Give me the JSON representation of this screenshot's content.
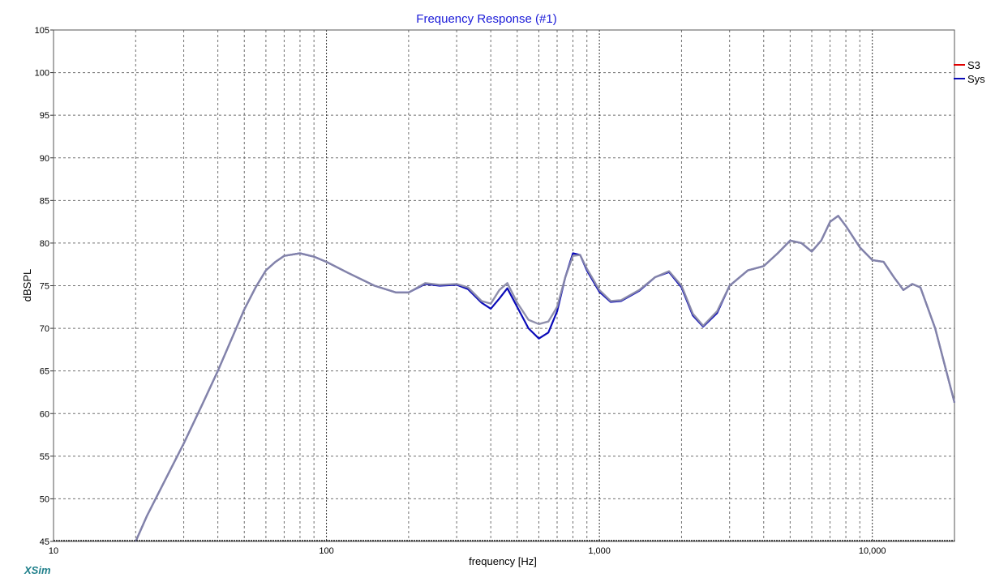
{
  "app": {
    "brand": "XSim"
  },
  "colors": {
    "title": "#1a1ad8",
    "grid": "#707070",
    "s3": "#e00000",
    "sys": "#0a0ab8",
    "trace_overlay": "#8a8aa8",
    "brand": "#1f7f8a"
  },
  "chart_data": {
    "type": "line",
    "title": "Frequency Response (#1)",
    "xlabel": "frequency [Hz]",
    "ylabel": "dBSPL",
    "xscale": "log",
    "xlim": [
      10,
      20000
    ],
    "ylim": [
      45,
      105
    ],
    "grid": true,
    "legend_position": "right",
    "x_ticks": [
      {
        "value": 10,
        "label": "10"
      },
      {
        "value": 100,
        "label": "100"
      },
      {
        "value": 1000,
        "label": "1,000"
      },
      {
        "value": 10000,
        "label": "10,000"
      }
    ],
    "y_ticks": [
      {
        "value": 45,
        "label": "45"
      },
      {
        "value": 50,
        "label": "50"
      },
      {
        "value": 55,
        "label": "55"
      },
      {
        "value": 60,
        "label": "60"
      },
      {
        "value": 65,
        "label": "65"
      },
      {
        "value": 70,
        "label": "70"
      },
      {
        "value": 75,
        "label": "75"
      },
      {
        "value": 80,
        "label": "80"
      },
      {
        "value": 85,
        "label": "85"
      },
      {
        "value": 90,
        "label": "90"
      },
      {
        "value": 95,
        "label": "95"
      },
      {
        "value": 100,
        "label": "100"
      },
      {
        "value": 105,
        "label": "105"
      }
    ],
    "series": [
      {
        "name": "S3",
        "color": "#e00000",
        "x": [
          20,
          22,
          25,
          30,
          35,
          40,
          45,
          50,
          55,
          60,
          65,
          70,
          80,
          90,
          100,
          120,
          150,
          180,
          200,
          230,
          260,
          300,
          330,
          370,
          400,
          430,
          460,
          500,
          550,
          600,
          650,
          700,
          750,
          800,
          850,
          900,
          1000,
          1100,
          1200,
          1400,
          1600,
          1800,
          2000,
          2200,
          2400,
          2700,
          3000,
          3500,
          4000,
          4500,
          5000,
          5500,
          6000,
          6500,
          7000,
          7500,
          8000,
          9000,
          10000,
          11000,
          12000,
          13000,
          14000,
          15000,
          17000,
          20000
        ],
        "y": [
          45,
          48,
          51.5,
          56.5,
          61,
          65,
          68.8,
          72.2,
          74.8,
          76.8,
          77.8,
          78.5,
          78.8,
          78.4,
          77.8,
          76.5,
          75,
          74.2,
          74.2,
          75.3,
          75.1,
          75.2,
          74.8,
          73.2,
          72.9,
          74.5,
          75.3,
          73,
          71,
          70.5,
          70.8,
          72.5,
          76,
          78.5,
          78.6,
          77,
          74.5,
          73.2,
          73.3,
          74.5,
          76,
          76.7,
          75,
          71.7,
          70.3,
          72,
          75,
          76.8,
          77.3,
          78.8,
          80.3,
          80,
          79,
          80.3,
          82.5,
          83.2,
          82,
          79.5,
          78,
          77.8,
          76,
          74.5,
          75.2,
          74.8,
          70,
          61.3
        ]
      },
      {
        "name": "Sys",
        "color": "#0a0ab8",
        "x": [
          20,
          22,
          25,
          30,
          35,
          40,
          45,
          50,
          55,
          60,
          65,
          70,
          80,
          90,
          100,
          120,
          150,
          180,
          200,
          230,
          260,
          300,
          330,
          370,
          400,
          430,
          460,
          500,
          550,
          600,
          650,
          700,
          750,
          800,
          850,
          900,
          1000,
          1100,
          1200,
          1400,
          1600,
          1800,
          2000,
          2200,
          2400,
          2700,
          3000,
          3500,
          4000,
          4500,
          5000,
          5500,
          6000,
          6500,
          7000,
          7500,
          8000,
          9000,
          10000,
          11000,
          12000,
          13000,
          14000,
          15000,
          17000,
          20000
        ],
        "y": [
          45,
          48,
          51.5,
          56.5,
          61,
          65,
          68.8,
          72.2,
          74.8,
          76.8,
          77.8,
          78.5,
          78.8,
          78.4,
          77.8,
          76.5,
          75,
          74.2,
          74.2,
          75.2,
          75,
          75.1,
          74.6,
          73,
          72.3,
          73.5,
          74.7,
          72.5,
          70,
          68.8,
          69.5,
          72,
          76,
          78.8,
          78.6,
          76.8,
          74.3,
          73.1,
          73.2,
          74.4,
          76,
          76.6,
          74.8,
          71.5,
          70.2,
          71.8,
          75,
          76.8,
          77.3,
          78.8,
          80.3,
          80,
          79,
          80.3,
          82.5,
          83.2,
          82,
          79.5,
          78,
          77.8,
          76,
          74.5,
          75.2,
          74.8,
          70,
          61.3
        ]
      }
    ]
  }
}
